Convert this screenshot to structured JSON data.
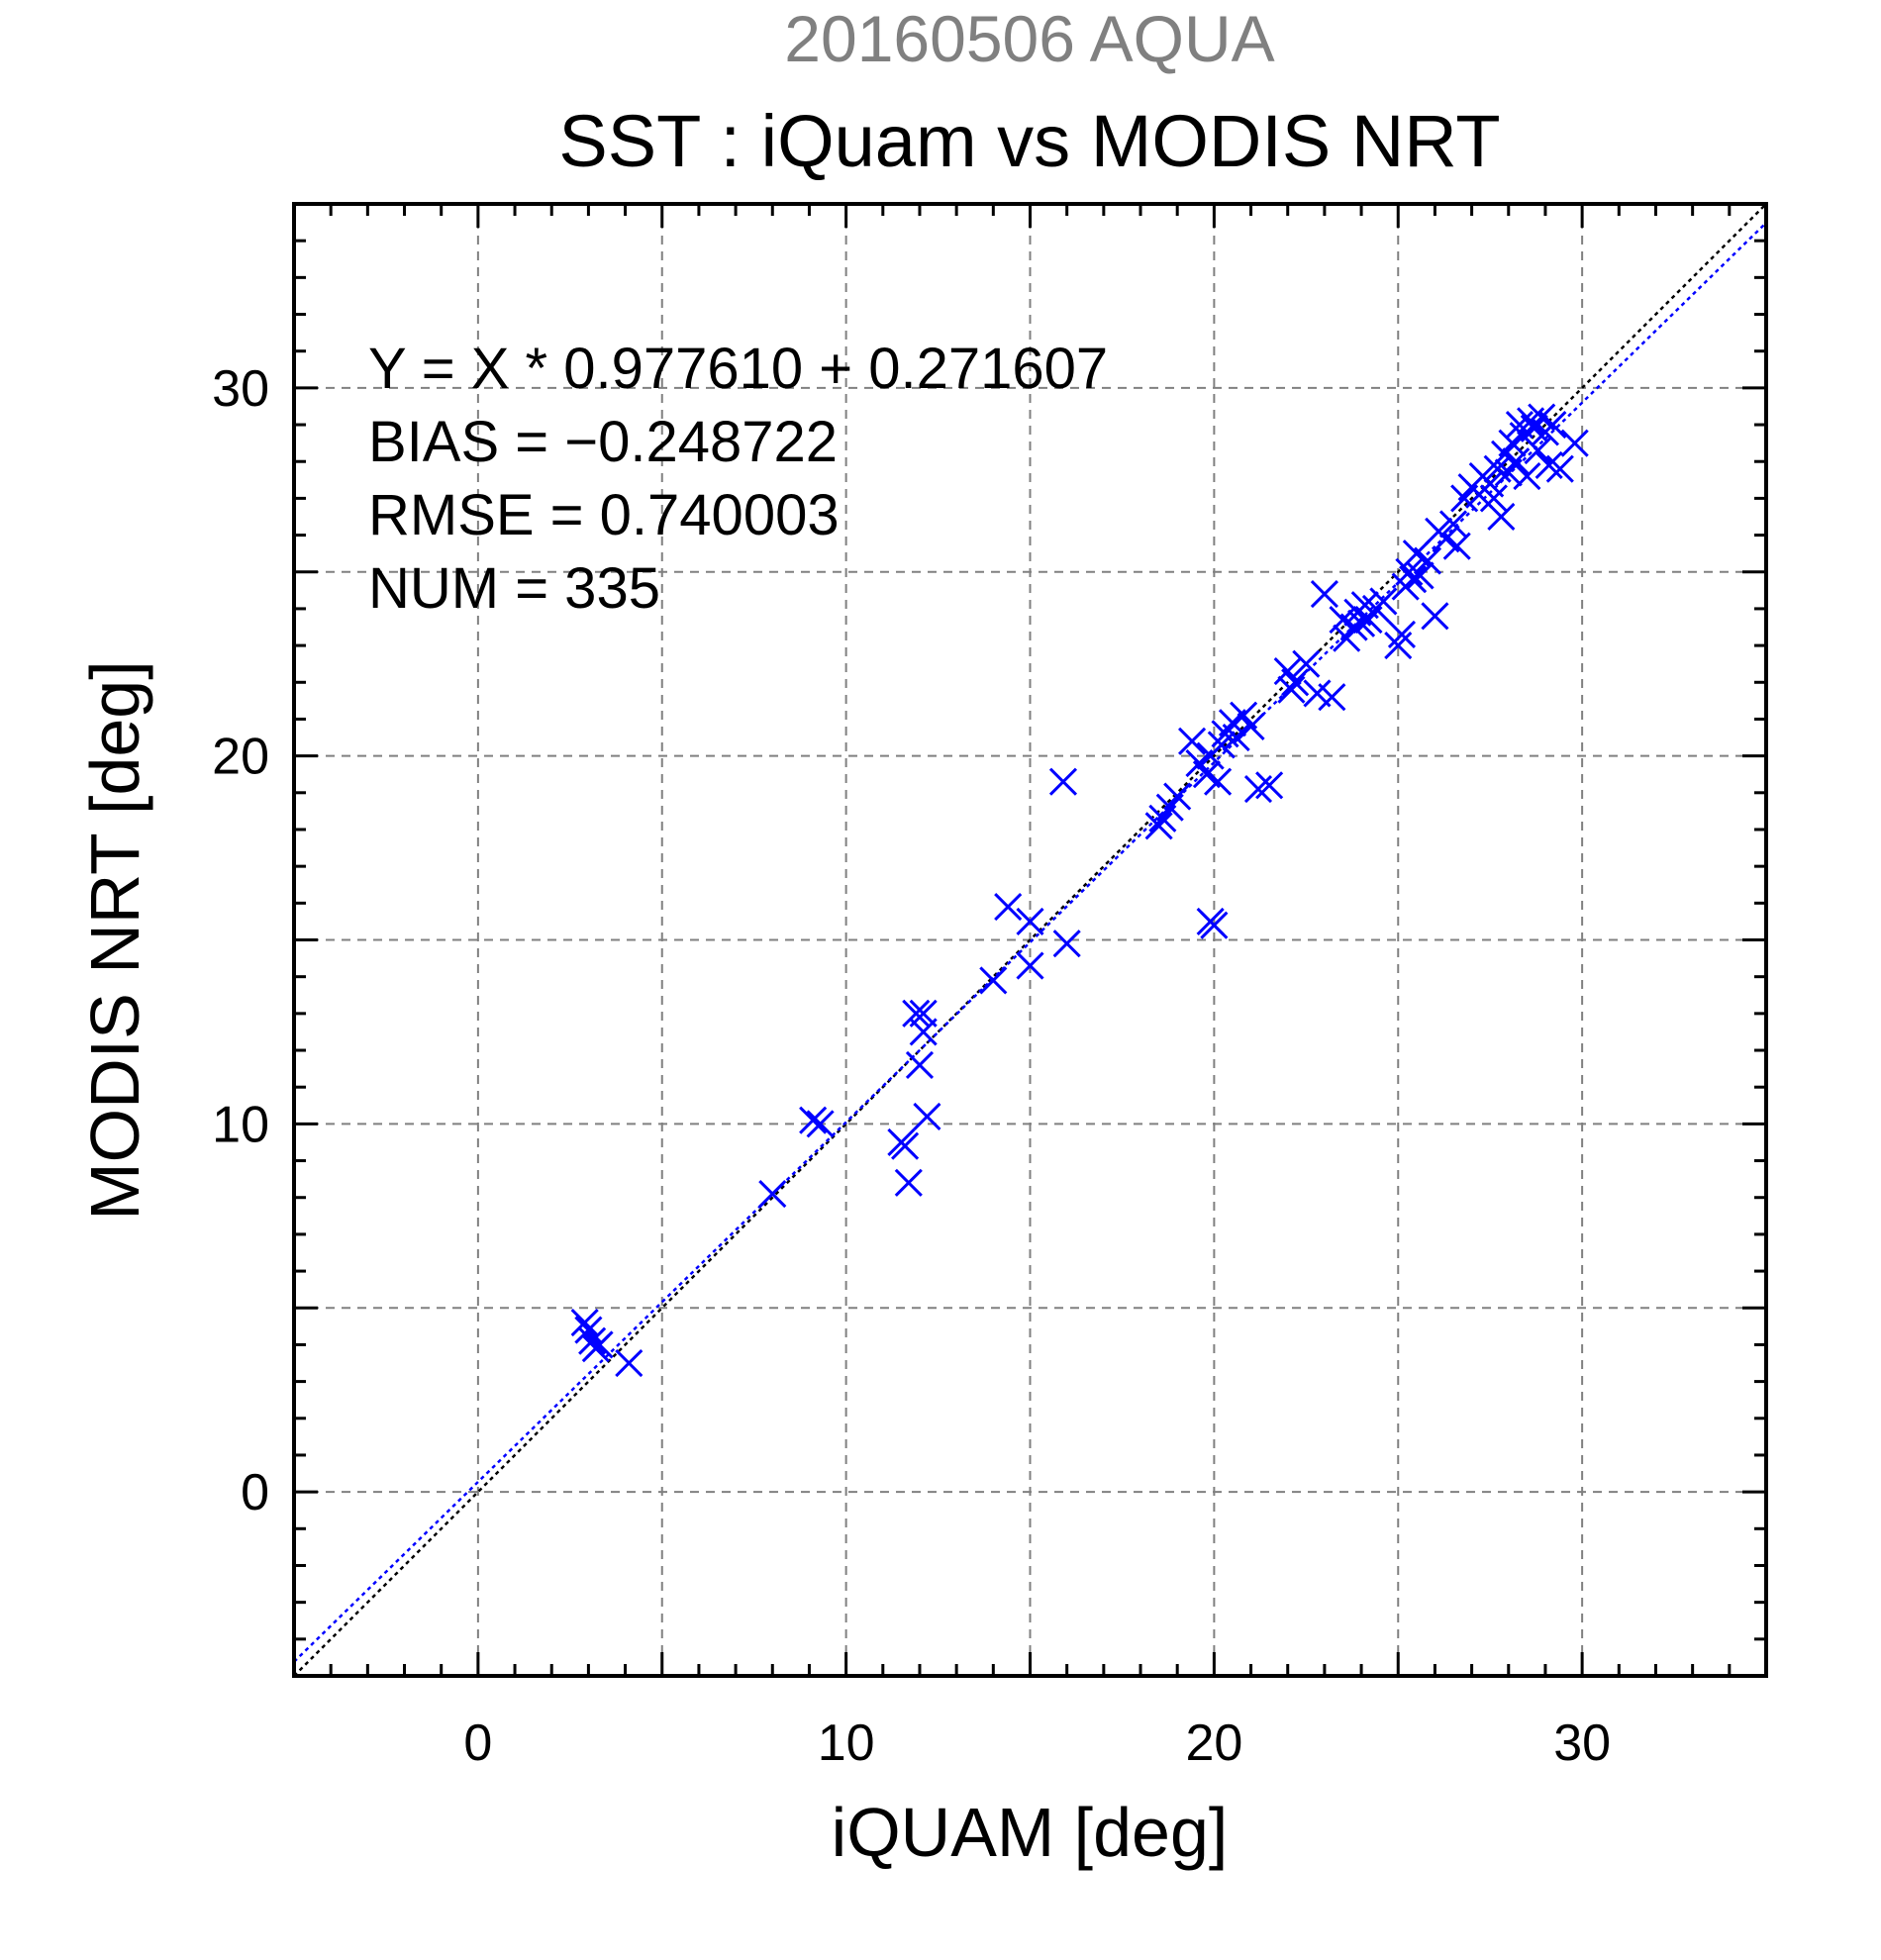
{
  "chart_data": {
    "type": "scatter",
    "title": "SST : iQuam vs MODIS NRT",
    "subtitle": "20160506 AQUA",
    "xlabel": "iQUAM [deg]",
    "ylabel": "MODIS NRT [deg]",
    "xlim": [
      -5,
      35
    ],
    "ylim": [
      -5,
      35
    ],
    "xticks": [
      0,
      10,
      20,
      30
    ],
    "yticks": [
      0,
      10,
      20,
      30
    ],
    "grid": true,
    "colors": {
      "points": "#0000ff",
      "fit_line": "#0000ff",
      "identity_line": "#000000",
      "subtitle": "#808080"
    },
    "stats": {
      "equation": "Y = X * 0.977610 + 0.271607",
      "bias": "BIAS = −0.248722",
      "rmse": "RMSE = 0.740003",
      "num": "NUM = 335"
    },
    "fit": {
      "slope": 0.97761,
      "intercept": 0.271607
    },
    "points": [
      [
        2.9,
        4.6
      ],
      [
        3.0,
        4.4
      ],
      [
        3.1,
        4.1
      ],
      [
        3.2,
        3.9
      ],
      [
        3.3,
        4.0
      ],
      [
        4.1,
        3.5
      ],
      [
        8.0,
        8.1
      ],
      [
        9.1,
        10.1
      ],
      [
        9.3,
        10.0
      ],
      [
        11.5,
        9.5
      ],
      [
        11.6,
        9.4
      ],
      [
        11.7,
        8.4
      ],
      [
        11.9,
        13.0
      ],
      [
        12.1,
        12.5
      ],
      [
        12.0,
        11.6
      ],
      [
        12.2,
        10.2
      ],
      [
        12.1,
        13.0
      ],
      [
        14.0,
        13.9
      ],
      [
        14.4,
        15.9
      ],
      [
        15.0,
        15.5
      ],
      [
        15.0,
        14.3
      ],
      [
        15.9,
        19.3
      ],
      [
        16.0,
        14.9
      ],
      [
        18.5,
        18.1
      ],
      [
        18.6,
        18.3
      ],
      [
        18.8,
        18.6
      ],
      [
        19.0,
        18.9
      ],
      [
        19.4,
        20.4
      ],
      [
        19.6,
        19.8
      ],
      [
        19.8,
        19.5
      ],
      [
        19.9,
        20.0
      ],
      [
        19.9,
        15.5
      ],
      [
        20.0,
        15.4
      ],
      [
        20.1,
        19.3
      ],
      [
        20.2,
        20.3
      ],
      [
        20.3,
        20.6
      ],
      [
        20.5,
        20.9
      ],
      [
        20.6,
        20.5
      ],
      [
        20.8,
        21.1
      ],
      [
        21.0,
        20.8
      ],
      [
        21.2,
        19.1
      ],
      [
        21.5,
        19.2
      ],
      [
        22.0,
        22.3
      ],
      [
        22.1,
        21.8
      ],
      [
        22.2,
        22.0
      ],
      [
        22.5,
        22.5
      ],
      [
        22.8,
        21.7
      ],
      [
        23.0,
        24.4
      ],
      [
        23.2,
        21.6
      ],
      [
        23.5,
        23.7
      ],
      [
        23.6,
        23.2
      ],
      [
        23.8,
        23.5
      ],
      [
        23.9,
        23.9
      ],
      [
        24.0,
        23.6
      ],
      [
        24.1,
        24.1
      ],
      [
        24.2,
        23.7
      ],
      [
        24.4,
        24.0
      ],
      [
        24.6,
        24.2
      ],
      [
        25.0,
        23.0
      ],
      [
        25.1,
        23.3
      ],
      [
        25.2,
        24.6
      ],
      [
        25.3,
        25.0
      ],
      [
        25.4,
        24.8
      ],
      [
        25.5,
        25.5
      ],
      [
        25.6,
        24.9
      ],
      [
        25.8,
        25.3
      ],
      [
        26.0,
        23.8
      ],
      [
        26.1,
        26.1
      ],
      [
        26.3,
        25.9
      ],
      [
        26.5,
        26.3
      ],
      [
        26.6,
        25.7
      ],
      [
        26.8,
        27.0
      ],
      [
        27.0,
        27.3
      ],
      [
        27.2,
        27.1
      ],
      [
        27.3,
        27.6
      ],
      [
        27.5,
        27.4
      ],
      [
        27.6,
        27.0
      ],
      [
        27.7,
        27.8
      ],
      [
        27.8,
        26.5
      ],
      [
        27.9,
        28.2
      ],
      [
        28.0,
        27.7
      ],
      [
        28.1,
        28.5
      ],
      [
        28.2,
        28.0
      ],
      [
        28.3,
        29.0
      ],
      [
        28.4,
        28.7
      ],
      [
        28.5,
        27.6
      ],
      [
        28.6,
        29.1
      ],
      [
        28.7,
        28.9
      ],
      [
        28.8,
        28.3
      ],
      [
        28.9,
        29.2
      ],
      [
        29.0,
        28.8
      ],
      [
        29.1,
        27.9
      ],
      [
        29.2,
        29.0
      ],
      [
        29.4,
        27.8
      ],
      [
        29.8,
        28.5
      ]
    ]
  }
}
